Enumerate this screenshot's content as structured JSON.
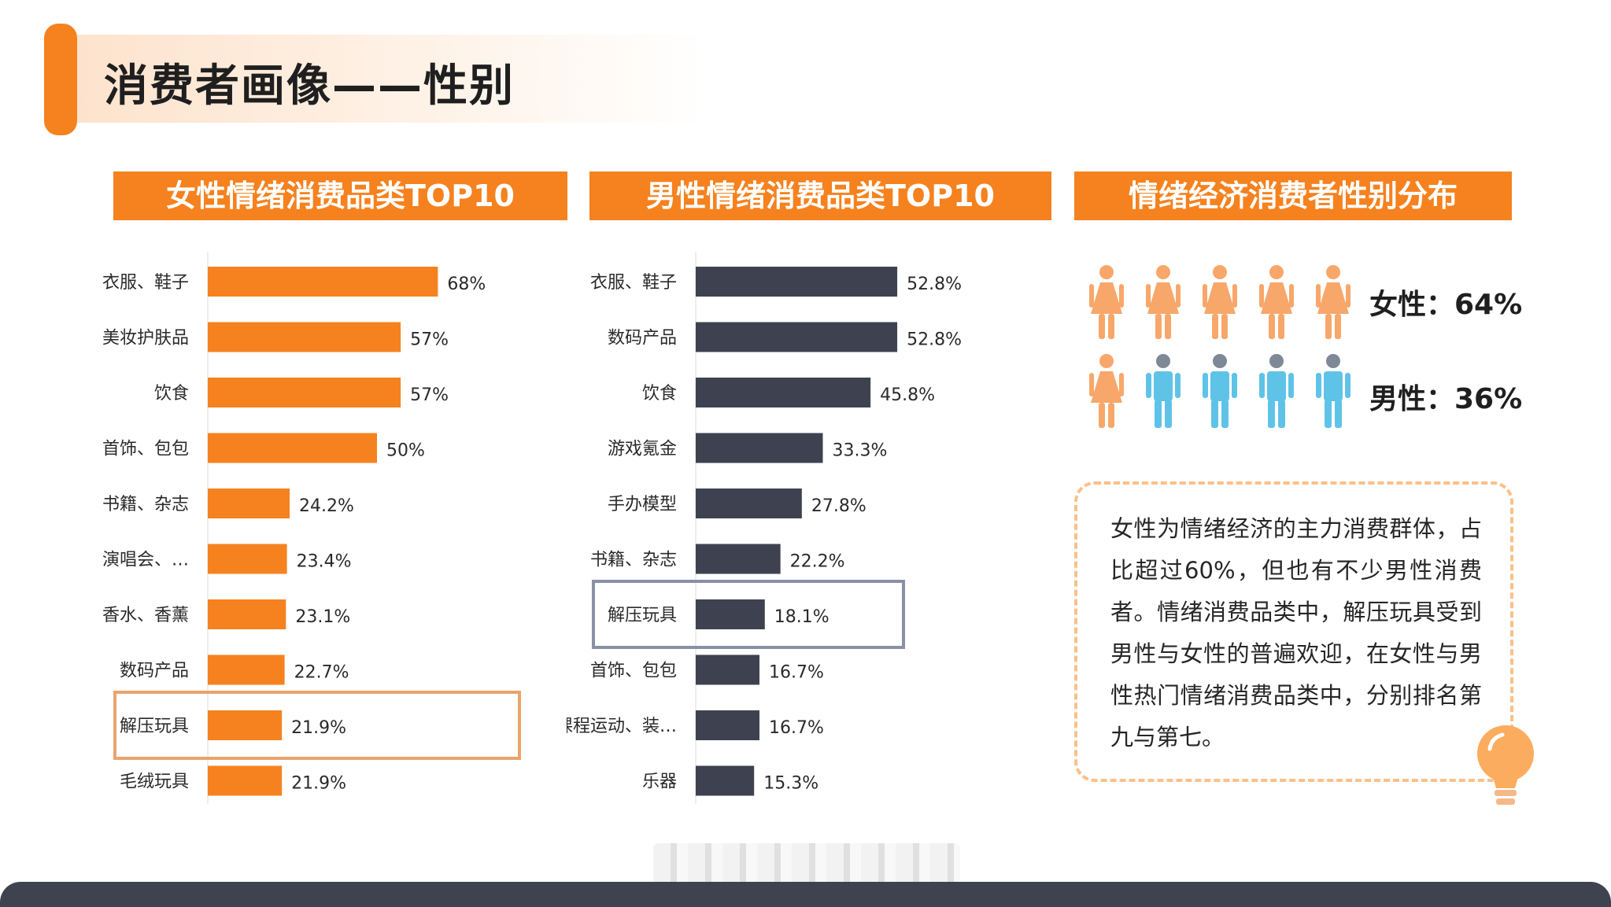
{
  "title": "消费者画像——性别",
  "colors": {
    "orange": "#f5821f",
    "dark": "#3e4250",
    "female_icon": "#f8a76a",
    "male_icon": "#5fc3e8",
    "male_head": "#7f8896",
    "highlight_female": "#e9a46c",
    "highlight_male": "#8a90a6"
  },
  "panels": {
    "female_header": "女性情绪消费品类TOP10",
    "male_header": "男性情绪消费品类TOP10",
    "gender_header": "情绪经济消费者性别分布"
  },
  "chart_data": [
    {
      "type": "bar",
      "orientation": "horizontal",
      "title": "女性情绪消费品类TOP10",
      "categories": [
        "衣服、鞋子",
        "美妆护肤品",
        "饮食",
        "首饰、包包",
        "书籍、杂志",
        "演唱会、…",
        "香水、香薰",
        "数码产品",
        "解压玩具",
        "毛绒玩具"
      ],
      "values": [
        68,
        57,
        57,
        50,
        24.2,
        23.4,
        23.1,
        22.7,
        21.9,
        21.9
      ],
      "value_labels": [
        "68%",
        "57%",
        "57%",
        "50%",
        "24.2%",
        "23.4%",
        "23.1%",
        "22.7%",
        "21.9%",
        "21.9%"
      ],
      "unit": "%",
      "bar_color": "#f5821f",
      "highlight": "解压玩具",
      "xlim": [
        0,
        100
      ]
    },
    {
      "type": "bar",
      "orientation": "horizontal",
      "title": "男性情绪消费品类TOP10",
      "categories": [
        "衣服、鞋子",
        "数码产品",
        "饮食",
        "游戏氪金",
        "手办模型",
        "书籍、杂志",
        "解压玩具",
        "首饰、包包",
        "课程运动、装…",
        "乐器"
      ],
      "values": [
        52.8,
        52.8,
        45.8,
        33.3,
        27.8,
        22.2,
        18.1,
        16.7,
        16.7,
        15.3
      ],
      "value_labels": [
        "52.8%",
        "52.8%",
        "45.8%",
        "33.3%",
        "27.8%",
        "22.2%",
        "18.1%",
        "16.7%",
        "16.7%",
        "15.3%"
      ],
      "unit": "%",
      "bar_color": "#3e4250",
      "highlight": "解压玩具",
      "xlim": [
        0,
        100
      ]
    }
  ],
  "gender": {
    "female_label": "女性：64%",
    "male_label": "男性：36%",
    "female_share": 64,
    "male_share": 36,
    "row1": [
      "female",
      "female",
      "female",
      "female",
      "female"
    ],
    "row2": [
      "female",
      "male",
      "male",
      "male",
      "male"
    ]
  },
  "note": "女性为情绪经济的主力消费群体，占比超过60%，但也有不少男性消费者。情绪消费品类中，解压玩具受到男性与女性的普遍欢迎，在女性与男性热门情绪消费品类中，分别排名第九与第七。"
}
